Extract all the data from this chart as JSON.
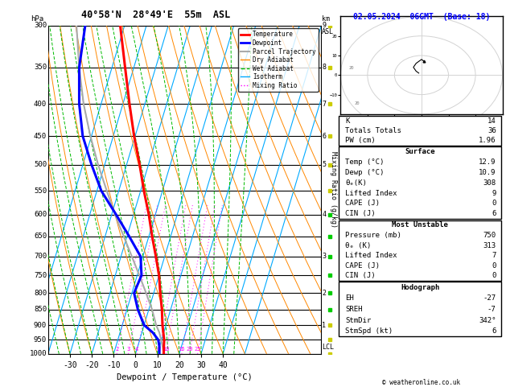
{
  "title_left": "40°58'N  28°49'E  55m  ASL",
  "title_right": "02.05.2024  06GMT  (Base: 18)",
  "xlabel": "Dewpoint / Temperature (°C)",
  "pressure_levels": [
    300,
    350,
    400,
    450,
    500,
    550,
    600,
    650,
    700,
    750,
    800,
    850,
    900,
    950,
    1000
  ],
  "temperature_profile": {
    "pressure": [
      1000,
      975,
      950,
      925,
      900,
      850,
      800,
      750,
      700,
      650,
      600,
      550,
      500,
      450,
      400,
      350,
      300
    ],
    "temp": [
      12.9,
      12.0,
      11.2,
      9.8,
      8.4,
      6.0,
      3.0,
      0.0,
      -4.0,
      -8.5,
      -13.0,
      -18.5,
      -24.0,
      -30.5,
      -37.0,
      -44.0,
      -52.0
    ]
  },
  "dewpoint_profile": {
    "pressure": [
      1000,
      975,
      950,
      925,
      900,
      850,
      800,
      750,
      700,
      650,
      600,
      550,
      500,
      450,
      400,
      350,
      300
    ],
    "temp": [
      10.9,
      10.0,
      8.5,
      5.0,
      0.0,
      -5.0,
      -9.0,
      -8.0,
      -11.0,
      -19.0,
      -28.0,
      -38.0,
      -46.0,
      -54.0,
      -60.0,
      -65.0,
      -68.0
    ]
  },
  "parcel_profile": {
    "pressure": [
      1000,
      975,
      950,
      925,
      900,
      850,
      800,
      750,
      700,
      650,
      600,
      550,
      500,
      450,
      400,
      350,
      300
    ],
    "temp": [
      12.9,
      11.5,
      9.8,
      8.0,
      5.5,
      1.5,
      -3.5,
      -9.0,
      -15.0,
      -21.5,
      -28.5,
      -35.5,
      -43.0,
      -50.5,
      -58.0,
      -65.0,
      -72.0
    ]
  },
  "lcl_pressure": 975,
  "stats": {
    "K": 14,
    "Totals_Totals": 36,
    "PW_cm": 1.96,
    "Surface_Temp": 12.9,
    "Surface_Dewp": 10.9,
    "Surface_ThetaE": 308,
    "Lifted_Index": 9,
    "CAPE": 0,
    "CIN": 6,
    "MU_Pressure": 750,
    "MU_ThetaE": 313,
    "MU_Lifted_Index": 7,
    "MU_CAPE": 0,
    "MU_CIN": 0,
    "EH": -27,
    "SREH": -7,
    "StmDir": 342,
    "StmSpd": 6
  },
  "colors": {
    "temperature": "#ff0000",
    "dewpoint": "#0000ff",
    "parcel": "#aaaaaa",
    "dry_adiabat": "#ff8800",
    "wet_adiabat": "#00bb00",
    "isotherm": "#00aaff",
    "mixing_ratio": "#ff00ff",
    "background": "#ffffff",
    "grid": "#000000"
  }
}
